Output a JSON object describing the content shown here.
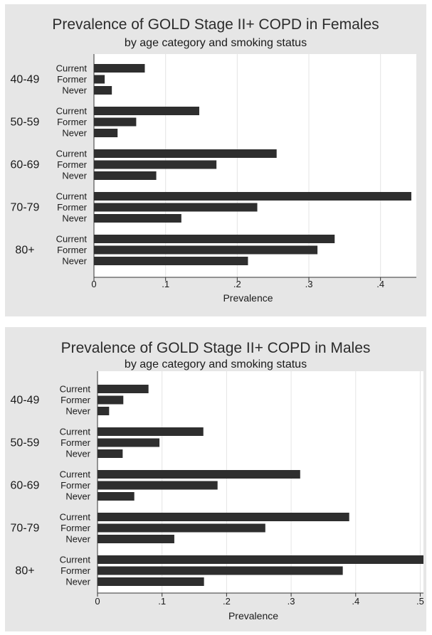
{
  "chart_data": [
    {
      "type": "bar",
      "orientation": "horizontal",
      "title": "Prevalence of GOLD Stage II+ COPD in Females",
      "subtitle": "by age category and smoking status",
      "xlabel": "Prevalence",
      "xlim": [
        0,
        0.45
      ],
      "x_ticks": [
        "0",
        ".1",
        ".2",
        ".3",
        ".4"
      ],
      "grid": true,
      "groups": [
        {
          "label": "40-49",
          "bars": [
            {
              "label": "Current",
              "value": 0.071
            },
            {
              "label": "Former",
              "value": 0.015
            },
            {
              "label": "Never",
              "value": 0.025
            }
          ]
        },
        {
          "label": "50-59",
          "bars": [
            {
              "label": "Current",
              "value": 0.147
            },
            {
              "label": "Former",
              "value": 0.059
            },
            {
              "label": "Never",
              "value": 0.033
            }
          ]
        },
        {
          "label": "60-69",
          "bars": [
            {
              "label": "Current",
              "value": 0.255
            },
            {
              "label": "Former",
              "value": 0.171
            },
            {
              "label": "Never",
              "value": 0.087
            }
          ]
        },
        {
          "label": "70-79",
          "bars": [
            {
              "label": "Current",
              "value": 0.443
            },
            {
              "label": "Former",
              "value": 0.228
            },
            {
              "label": "Never",
              "value": 0.122
            }
          ]
        },
        {
          "label": "80+",
          "bars": [
            {
              "label": "Current",
              "value": 0.336
            },
            {
              "label": "Former",
              "value": 0.312
            },
            {
              "label": "Never",
              "value": 0.215
            }
          ]
        }
      ]
    },
    {
      "type": "bar",
      "orientation": "horizontal",
      "title": "Prevalence of GOLD Stage II+ COPD in Males",
      "subtitle": "by age category and smoking status",
      "xlabel": "Prevalence",
      "xlim": [
        0,
        0.505
      ],
      "x_ticks": [
        "0",
        ".1",
        ".2",
        ".3",
        ".4",
        ".5"
      ],
      "grid": true,
      "groups": [
        {
          "label": "40-49",
          "bars": [
            {
              "label": "Current",
              "value": 0.079
            },
            {
              "label": "Former",
              "value": 0.04
            },
            {
              "label": "Never",
              "value": 0.018
            }
          ]
        },
        {
          "label": "50-59",
          "bars": [
            {
              "label": "Current",
              "value": 0.164
            },
            {
              "label": "Former",
              "value": 0.096
            },
            {
              "label": "Never",
              "value": 0.039
            }
          ]
        },
        {
          "label": "60-69",
          "bars": [
            {
              "label": "Current",
              "value": 0.314
            },
            {
              "label": "Former",
              "value": 0.186
            },
            {
              "label": "Never",
              "value": 0.057
            }
          ]
        },
        {
          "label": "70-79",
          "bars": [
            {
              "label": "Current",
              "value": 0.39
            },
            {
              "label": "Former",
              "value": 0.26
            },
            {
              "label": "Never",
              "value": 0.119
            }
          ]
        },
        {
          "label": "80+",
          "bars": [
            {
              "label": "Current",
              "value": 0.505
            },
            {
              "label": "Former",
              "value": 0.38
            },
            {
              "label": "Never",
              "value": 0.165
            }
          ]
        }
      ]
    }
  ],
  "colors": {
    "panel_bg": "#e6e6e6",
    "plot_bg": "#ffffff",
    "bar": "#2e2e2e",
    "grid": "#e4e4e4"
  }
}
